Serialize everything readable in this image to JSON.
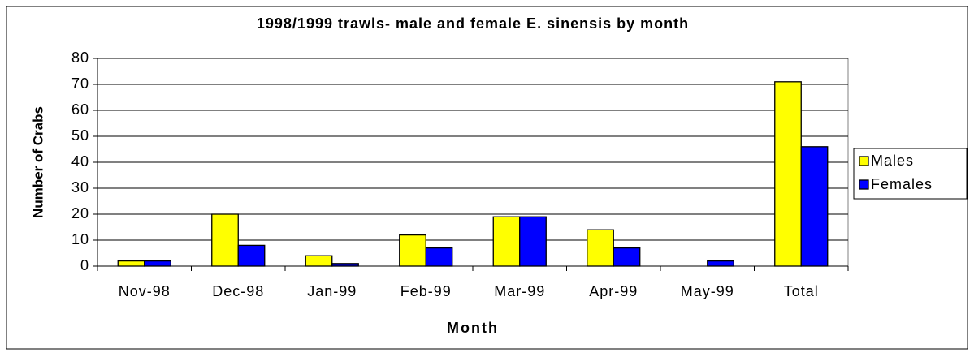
{
  "chart_data": {
    "type": "bar",
    "title": "1998/1999 trawls- male and female E. sinensis by month",
    "x_label": "Month",
    "y_label": "Number of Crabs",
    "categories": [
      "Nov-98",
      "Dec-98",
      "Jan-99",
      "Feb-99",
      "Mar-99",
      "Apr-99",
      "May-99",
      "Total"
    ],
    "series": [
      {
        "name": "Males",
        "color": "#ffff00",
        "values": [
          2,
          20,
          4,
          12,
          19,
          14,
          0,
          71
        ]
      },
      {
        "name": "Females",
        "color": "#0000ff",
        "values": [
          2,
          8,
          1,
          7,
          19,
          7,
          2,
          46
        ]
      }
    ],
    "ylim": [
      0,
      80
    ],
    "yticks": [
      0,
      10,
      20,
      30,
      40,
      50,
      60,
      70,
      80
    ],
    "grid": true,
    "legend": "right"
  }
}
